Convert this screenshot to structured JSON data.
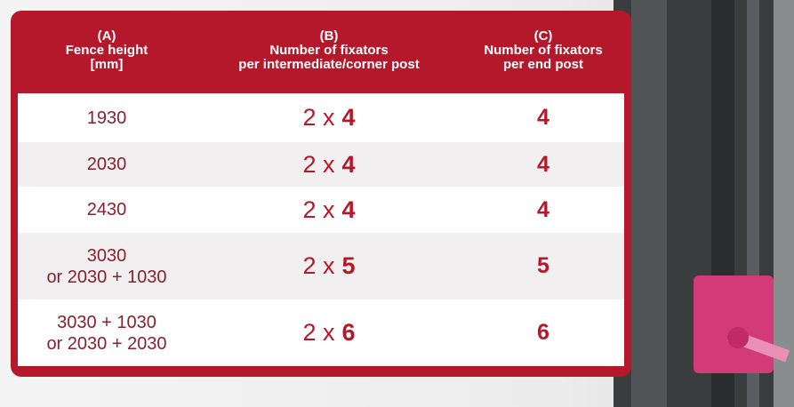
{
  "table": {
    "header": [
      [
        "(A)",
        "Fence height",
        "[mm]"
      ],
      [
        "(B)",
        "Number of fixators",
        "per intermediate/corner post"
      ],
      [
        "(C)",
        "Number of fixators",
        "per end post"
      ]
    ],
    "rows": [
      {
        "height": [
          "1930"
        ],
        "intermediate": {
          "multiplier": "2 x",
          "count": "4"
        },
        "end": "4"
      },
      {
        "height": [
          "2030"
        ],
        "intermediate": {
          "multiplier": "2 x",
          "count": "4"
        },
        "end": "4"
      },
      {
        "height": [
          "2430"
        ],
        "intermediate": {
          "multiplier": "2 x",
          "count": "4"
        },
        "end": "4"
      },
      {
        "height": [
          "3030",
          "or  2030 + 1030"
        ],
        "intermediate": {
          "multiplier": "2 x",
          "count": "5"
        },
        "end": "5"
      },
      {
        "height": [
          "3030 + 1030",
          "or 2030 + 2030"
        ],
        "intermediate": {
          "multiplier": "2 x",
          "count": "6"
        },
        "end": "6"
      }
    ]
  }
}
